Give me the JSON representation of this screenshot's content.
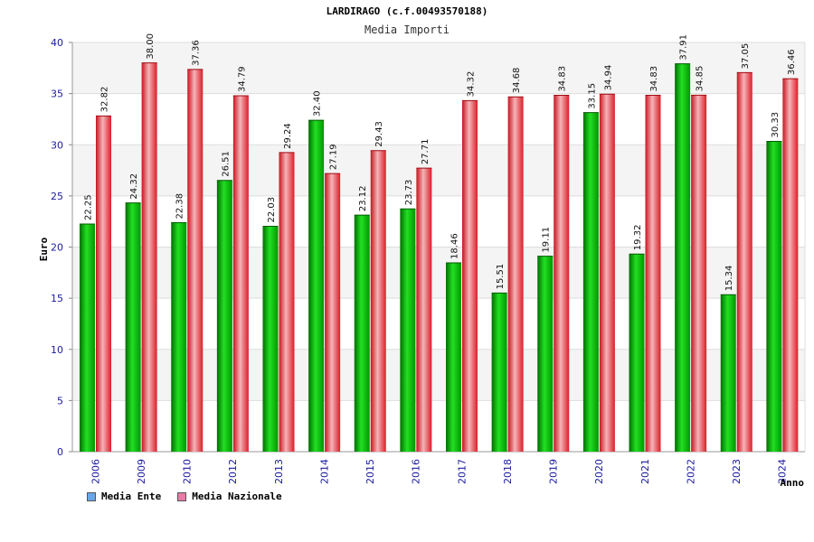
{
  "title": "LARDIRAGO (c.f.00493570188)",
  "subtitle": "Media Importi",
  "chart_data": {
    "type": "bar",
    "categories": [
      "2006",
      "2009",
      "2010",
      "2012",
      "2013",
      "2014",
      "2015",
      "2016",
      "2017",
      "2018",
      "2019",
      "2020",
      "2021",
      "2022",
      "2023",
      "2024"
    ],
    "series": [
      {
        "name": "Media Ente",
        "color": "#00b400",
        "values": [
          22.25,
          24.32,
          22.38,
          26.51,
          22.03,
          32.4,
          23.12,
          23.73,
          18.46,
          15.51,
          19.11,
          33.15,
          19.32,
          37.91,
          15.34,
          30.33
        ],
        "labels": [
          "22.25",
          "24.32",
          "22.38",
          "26.51",
          "22.03",
          "32.40",
          "23.12",
          "23.73",
          "18.46",
          "15.51",
          "19.11",
          "33.15",
          "19.32",
          "37.91",
          "15.34",
          "30.33"
        ]
      },
      {
        "name": "Media Nazionale",
        "color": "#e8202a",
        "values": [
          32.82,
          38.0,
          37.36,
          34.79,
          29.24,
          27.19,
          29.43,
          27.71,
          34.32,
          34.68,
          34.83,
          34.94,
          34.83,
          34.85,
          37.05,
          36.46
        ],
        "labels": [
          "32.82",
          "38.00",
          "37.36",
          "34.79",
          "29.24",
          "27.19",
          "29.43",
          "27.71",
          "34.32",
          "34.68",
          "34.83",
          "34.94",
          "34.83",
          "34.85",
          "37.05",
          "36.46"
        ]
      }
    ],
    "xlabel": "Anno",
    "ylabel": "Euro",
    "ylim": [
      0,
      40
    ],
    "yticks": [
      "0",
      "5",
      "10",
      "15",
      "20",
      "25",
      "30",
      "35",
      "40"
    ],
    "grid": true,
    "legend_position": "bottom-left"
  },
  "legend": {
    "items": [
      {
        "label": "Media Ente",
        "color": "#6aa6e8"
      },
      {
        "label": "Media Nazionale",
        "color": "#e87aa8"
      }
    ]
  }
}
